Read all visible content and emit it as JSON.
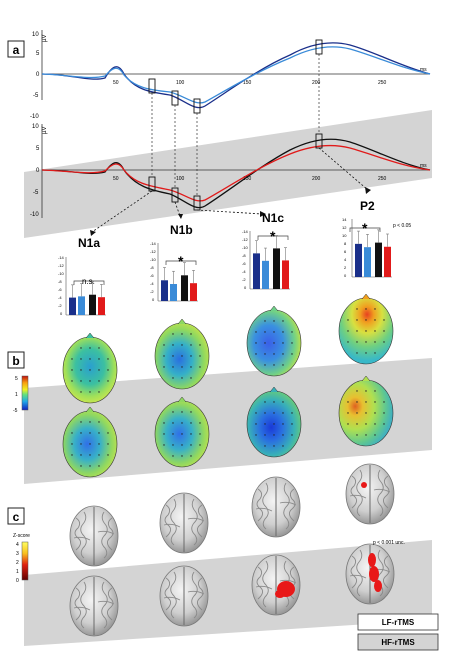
{
  "panels": {
    "a": "a",
    "b": "b",
    "c": "c"
  },
  "erp": {
    "y_unit": "µV",
    "x_unit": "ms",
    "y_ticks": [
      "10",
      "5",
      "0",
      "-5",
      "-10"
    ],
    "x_ticks": [
      "50",
      "100",
      "150",
      "200",
      "250"
    ]
  },
  "components": {
    "n1a": "N1a",
    "n1b": "N1b",
    "n1c": "N1c",
    "p2": "P2"
  },
  "bar_ticks": {
    "n1a": [
      "-14",
      "-12",
      "-10",
      "-8",
      "-6",
      "-4",
      "-2",
      "0"
    ],
    "n1b": [
      "-14",
      "-12",
      "-10",
      "-8",
      "-6",
      "-4",
      "-2",
      "0"
    ],
    "n1c": [
      "-14",
      "-12",
      "-10",
      "-8",
      "-6",
      "-4",
      "-2",
      "0"
    ],
    "p2": [
      "14",
      "12",
      "10",
      "8",
      "6",
      "4",
      "2",
      "0"
    ]
  },
  "significance": {
    "ns": "n.s.",
    "star": "*",
    "p_bar": "p < 0.05",
    "p_brain": "p < 0.001 unc."
  },
  "colorbar_b": {
    "ticks": [
      "5",
      "1",
      "-5"
    ]
  },
  "colorbar_c": {
    "title": "Z-score",
    "ticks": [
      "4",
      "3",
      "2",
      "1",
      "0"
    ]
  },
  "legend": {
    "lf": "LF-rTMS",
    "hf": "HF-rTMS"
  },
  "colors": {
    "lf_line_1": "#1a2f8a",
    "lf_line_2": "#3a8bd8",
    "hf_line_1": "#111111",
    "hf_line_2": "#e11a1a",
    "band_gray": "#d4d4d4"
  },
  "chart_data": [
    {
      "type": "bar",
      "categories": [
        "N1a"
      ],
      "series": [
        {
          "values": [
            -4.2
          ]
        },
        {
          "values": [
            -4.5
          ]
        },
        {
          "values": [
            -4.9
          ]
        },
        {
          "values": [
            -4.3
          ]
        }
      ],
      "ylim": [
        -14,
        0
      ]
    },
    {
      "type": "bar",
      "categories": [
        "N1b"
      ],
      "series": [
        {
          "values": [
            -5.0
          ]
        },
        {
          "values": [
            -4.1
          ]
        },
        {
          "values": [
            -6.2
          ]
        },
        {
          "values": [
            -4.3
          ]
        }
      ],
      "ylim": [
        -14,
        0
      ]
    },
    {
      "type": "bar",
      "categories": [
        "N1c"
      ],
      "series": [
        {
          "values": [
            -8.6
          ]
        },
        {
          "values": [
            -6.8
          ]
        },
        {
          "values": [
            -9.8
          ]
        },
        {
          "values": [
            -6.9
          ]
        }
      ],
      "ylim": [
        -14,
        0
      ]
    },
    {
      "type": "bar",
      "categories": [
        "P2"
      ],
      "series": [
        {
          "values": [
            8.0
          ]
        },
        {
          "values": [
            7.2
          ]
        },
        {
          "values": [
            8.3
          ]
        },
        {
          "values": [
            7.3
          ]
        }
      ],
      "ylim": [
        0,
        14
      ]
    }
  ]
}
